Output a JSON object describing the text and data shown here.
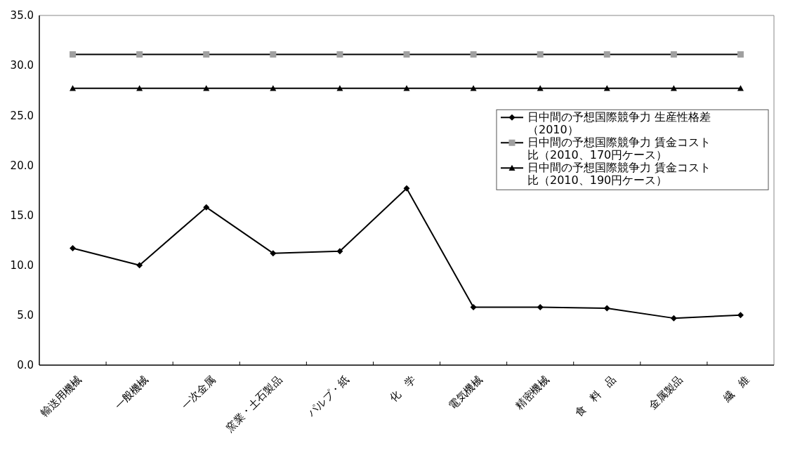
{
  "chart_data": {
    "type": "line",
    "categories": [
      "輸送用機械",
      "一般機械",
      "一次金属",
      "窯業・土石製品",
      "パルプ・紙",
      "化　学",
      "電気機械",
      "精密機械",
      "食　料　品",
      "金属製品",
      "繊　維"
    ],
    "series": [
      {
        "name": "日中間の予想国際競争力 生産性格差（2010）",
        "color": "#000000",
        "marker": "diamond",
        "values": [
          11.7,
          10.0,
          15.8,
          11.2,
          11.4,
          17.7,
          5.8,
          5.8,
          5.7,
          4.7,
          5.0
        ]
      },
      {
        "name": "日中間の予想国際競争力 賃金コスト比（2010、170円ケース）",
        "color": "#a0a0a0",
        "marker": "square",
        "values": [
          31.1,
          31.1,
          31.1,
          31.1,
          31.1,
          31.1,
          31.1,
          31.1,
          31.1,
          31.1,
          31.1
        ]
      },
      {
        "name": "日中間の予想国際競争力 賃金コスト比（2010、190円ケース）",
        "color": "#000000",
        "marker": "triangle",
        "values": [
          27.7,
          27.7,
          27.7,
          27.7,
          27.7,
          27.7,
          27.7,
          27.7,
          27.7,
          27.7,
          27.7
        ]
      }
    ],
    "ylim": [
      0,
      35
    ],
    "yticks": [
      {
        "value": 0,
        "label": "0.0"
      },
      {
        "value": 5,
        "label": "5.0"
      },
      {
        "value": 10,
        "label": "10.0"
      },
      {
        "value": 15,
        "label": "15.0"
      },
      {
        "value": 20,
        "label": "20.0"
      },
      {
        "value": 25,
        "label": "25.0"
      },
      {
        "value": 30,
        "label": "30.0"
      },
      {
        "value": 35,
        "label": "35.0"
      }
    ],
    "grid": false,
    "legend": "right",
    "line_style": "solid"
  }
}
